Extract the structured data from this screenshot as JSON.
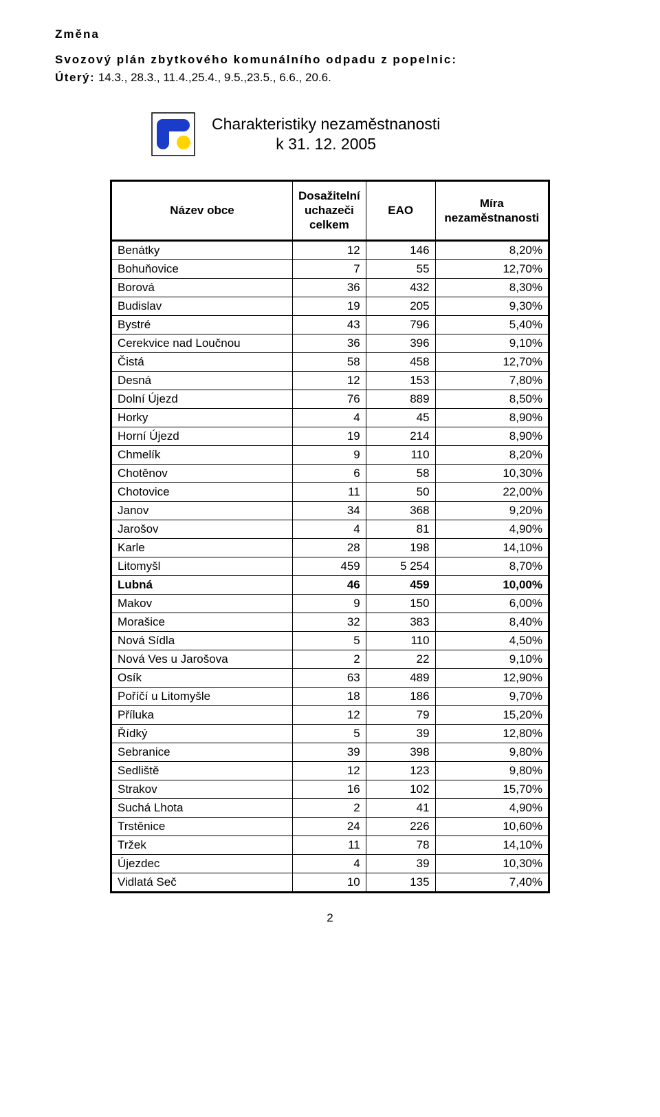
{
  "change_heading": "Změna",
  "plan_title": "Svozový plán zbytkového komunálního odpadu z popelnic:",
  "tuesday_label": "Úterý:",
  "tuesday_dates": " 14.3., 28.3., 11.4.,25.4., 9.5.,23.5., 6.6., 20.6.",
  "chart_title_line1": "Charakteristiky nezaměstnanosti",
  "chart_title_line2": "k 31. 12. 2005",
  "table": {
    "headers": {
      "name": "Název obce",
      "applicants_line1": "Dosažitelní",
      "applicants_line2": "uchazeči",
      "applicants_line3": "celkem",
      "eao": "EAO",
      "rate_line1": "Míra",
      "rate_line2": "nezaměstnanosti"
    },
    "rows": [
      {
        "name": "Benátky",
        "a": "12",
        "b": "146",
        "c": "8,20%",
        "bold": false
      },
      {
        "name": "Bohuňovice",
        "a": "7",
        "b": "55",
        "c": "12,70%",
        "bold": false
      },
      {
        "name": "Borová",
        "a": "36",
        "b": "432",
        "c": "8,30%",
        "bold": false
      },
      {
        "name": "Budislav",
        "a": "19",
        "b": "205",
        "c": "9,30%",
        "bold": false
      },
      {
        "name": "Bystré",
        "a": "43",
        "b": "796",
        "c": "5,40%",
        "bold": false
      },
      {
        "name": "Cerekvice nad Loučnou",
        "a": "36",
        "b": "396",
        "c": "9,10%",
        "bold": false
      },
      {
        "name": "Čistá",
        "a": "58",
        "b": "458",
        "c": "12,70%",
        "bold": false
      },
      {
        "name": "Desná",
        "a": "12",
        "b": "153",
        "c": "7,80%",
        "bold": false
      },
      {
        "name": "Dolní Újezd",
        "a": "76",
        "b": "889",
        "c": "8,50%",
        "bold": false
      },
      {
        "name": "Horky",
        "a": "4",
        "b": "45",
        "c": "8,90%",
        "bold": false
      },
      {
        "name": "Horní Újezd",
        "a": "19",
        "b": "214",
        "c": "8,90%",
        "bold": false
      },
      {
        "name": "Chmelík",
        "a": "9",
        "b": "110",
        "c": "8,20%",
        "bold": false
      },
      {
        "name": "Chotěnov",
        "a": "6",
        "b": "58",
        "c": "10,30%",
        "bold": false
      },
      {
        "name": "Chotovice",
        "a": "11",
        "b": "50",
        "c": "22,00%",
        "bold": false
      },
      {
        "name": "Janov",
        "a": "34",
        "b": "368",
        "c": "9,20%",
        "bold": false
      },
      {
        "name": "Jarošov",
        "a": "4",
        "b": "81",
        "c": "4,90%",
        "bold": false
      },
      {
        "name": "Karle",
        "a": "28",
        "b": "198",
        "c": "14,10%",
        "bold": false
      },
      {
        "name": "Litomyšl",
        "a": "459",
        "b": "5 254",
        "c": "8,70%",
        "bold": false
      },
      {
        "name": "Lubná",
        "a": "46",
        "b": "459",
        "c": "10,00%",
        "bold": true
      },
      {
        "name": "Makov",
        "a": "9",
        "b": "150",
        "c": "6,00%",
        "bold": false
      },
      {
        "name": "Morašice",
        "a": "32",
        "b": "383",
        "c": "8,40%",
        "bold": false
      },
      {
        "name": "Nová Sídla",
        "a": "5",
        "b": "110",
        "c": "4,50%",
        "bold": false
      },
      {
        "name": "Nová Ves u Jarošova",
        "a": "2",
        "b": "22",
        "c": "9,10%",
        "bold": false
      },
      {
        "name": "Osík",
        "a": "63",
        "b": "489",
        "c": "12,90%",
        "bold": false
      },
      {
        "name": "Poříčí u Litomyšle",
        "a": "18",
        "b": "186",
        "c": "9,70%",
        "bold": false
      },
      {
        "name": "Příluka",
        "a": "12",
        "b": "79",
        "c": "15,20%",
        "bold": false
      },
      {
        "name": "Řídký",
        "a": "5",
        "b": "39",
        "c": "12,80%",
        "bold": false
      },
      {
        "name": "Sebranice",
        "a": "39",
        "b": "398",
        "c": "9,80%",
        "bold": false
      },
      {
        "name": "Sedliště",
        "a": "12",
        "b": "123",
        "c": "9,80%",
        "bold": false
      },
      {
        "name": "Strakov",
        "a": "16",
        "b": "102",
        "c": "15,70%",
        "bold": false
      },
      {
        "name": "Suchá Lhota",
        "a": "2",
        "b": "41",
        "c": "4,90%",
        "bold": false
      },
      {
        "name": "Trstěnice",
        "a": "24",
        "b": "226",
        "c": "10,60%",
        "bold": false
      },
      {
        "name": "Tržek",
        "a": "11",
        "b": "78",
        "c": "14,10%",
        "bold": false
      },
      {
        "name": "Újezdec",
        "a": "4",
        "b": "39",
        "c": "10,30%",
        "bold": false
      },
      {
        "name": "Vidlatá Seč",
        "a": "10",
        "b": "135",
        "c": "7,40%",
        "bold": false
      }
    ]
  },
  "logo": {
    "bg": "#ffffff",
    "border": "#000000",
    "blue": "#1a3cc8",
    "yellow": "#ffd400"
  },
  "page_number": "2"
}
